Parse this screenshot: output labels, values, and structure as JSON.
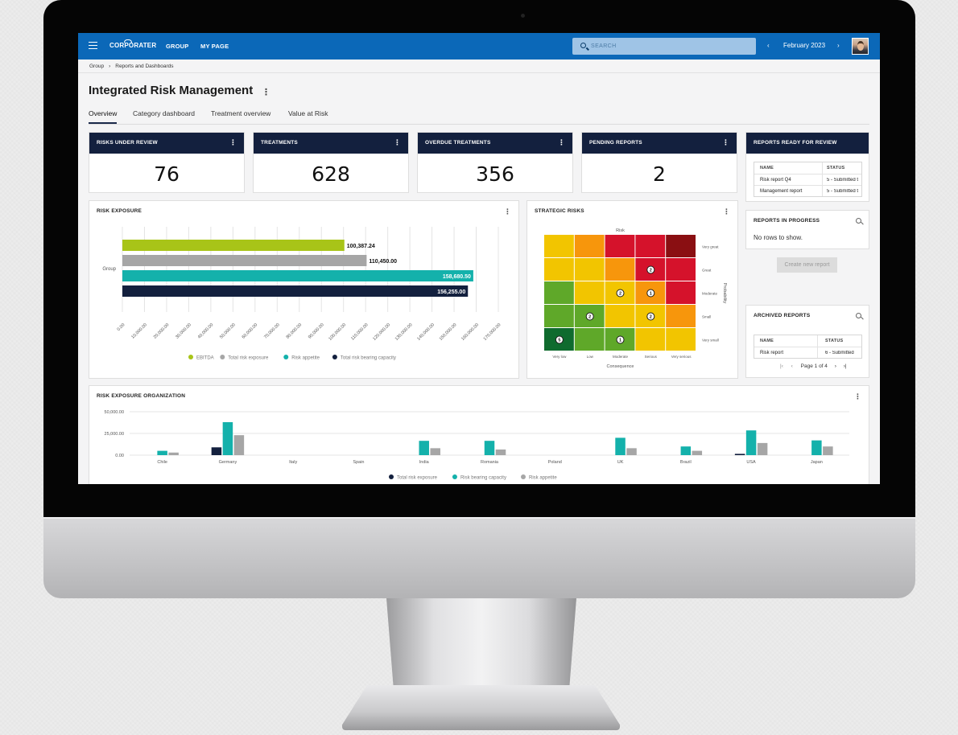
{
  "topbar": {
    "logo": "CORPORATER",
    "nav": [
      "GROUP",
      "MY PAGE"
    ],
    "search_placeholder": "SEARCH",
    "period": "February 2023",
    "prev": "‹",
    "next": "›"
  },
  "breadcrumb": [
    "Group",
    "›",
    "Reports and Dashboards"
  ],
  "page": {
    "title": "Integrated Risk Management",
    "menu": "⋮",
    "tabs": [
      "Overview",
      "Category dashboard",
      "Treatment overview",
      "Value at Risk"
    ]
  },
  "kpis": [
    {
      "label": "RISKS UNDER REVIEW",
      "value": "76"
    },
    {
      "label": "TREATMENTS",
      "value": "628"
    },
    {
      "label": "OVERDUE TREATMENTS",
      "value": "356"
    },
    {
      "label": "PENDING REPORTS",
      "value": "2"
    }
  ],
  "reports_ready": {
    "title": "REPORTS READY FOR REVIEW",
    "columns": [
      "NAME",
      "STATUS"
    ],
    "rows": [
      {
        "name": "Risk report Q4",
        "status": "5 - Submitted t"
      },
      {
        "name": "Management report",
        "status": "5 - Submitted t"
      }
    ]
  },
  "reports_in_progress": {
    "title": "REPORTS IN PROGRESS",
    "empty": "No rows to show.",
    "button": "Create new report"
  },
  "archived_reports": {
    "title": "ARCHIVED REPORTS",
    "columns": [
      "NAME",
      "STATUS"
    ],
    "rows": [
      {
        "name": "Risk report",
        "status": "6 - Submitted"
      }
    ],
    "pager": "Page 1 of 4"
  },
  "colors": {
    "lime": "#a8c418",
    "grey": "#a6a6a6",
    "teal": "#14b1ab",
    "navy": "#13203e",
    "topbar": "#0b68b8"
  },
  "risk_exposure": {
    "title": "RISK EXPOSURE",
    "chart_data": {
      "type": "bar",
      "orientation": "horizontal",
      "categories": [
        "Group"
      ],
      "series": [
        {
          "name": "EBITDA",
          "values": [
            100387.24
          ],
          "label": "100,387.24",
          "color": "#a8c418"
        },
        {
          "name": "Total risk exposure",
          "values": [
            110450.0
          ],
          "label": "110,450.00",
          "color": "#a6a6a6"
        },
        {
          "name": "Risk appetite",
          "values": [
            158680.5
          ],
          "label": "158,680.50",
          "color": "#14b1ab"
        },
        {
          "name": "Total risk bearing capacity",
          "values": [
            156255.0
          ],
          "label": "156,255.00",
          "color": "#13203e"
        }
      ],
      "xticks": [
        "0.00",
        "10,000.00",
        "20,000.00",
        "30,000.00",
        "40,000.00",
        "50,000.00",
        "60,000.00",
        "70,000.00",
        "80,000.00",
        "90,000.00",
        "100,000.00",
        "110,000.00",
        "120,000.00",
        "130,000.00",
        "140,000.00",
        "150,000.00",
        "160,000.00",
        "170,000.00"
      ],
      "xlim": [
        0,
        170000
      ],
      "grid": true,
      "legend": "bottom"
    }
  },
  "strategic_risks": {
    "title": "STRATEGIC RISKS",
    "chart_data": {
      "type": "heatmap",
      "title": "Risk",
      "xlabel": "Consequence",
      "ylabel": "Probability",
      "x_categories": [
        "Very low",
        "Low",
        "Moderate",
        "Serious",
        "Very serious"
      ],
      "y_categories": [
        "Very great",
        "Great",
        "Moderate",
        "Small",
        "Very small"
      ],
      "cell_colors": [
        [
          "#f2c500",
          "#f7960c",
          "#d5122b",
          "#d5122b",
          "#8a0f12"
        ],
        [
          "#f2c500",
          "#f2c500",
          "#f7960c",
          "#d5122b",
          "#d5122b"
        ],
        [
          "#5fa829",
          "#f2c500",
          "#f2c500",
          "#f7960c",
          "#d5122b"
        ],
        [
          "#5fa829",
          "#5fa829",
          "#f2c500",
          "#f2c500",
          "#f7960c"
        ],
        [
          "#0f6b2e",
          "#5fa829",
          "#5fa829",
          "#f2c500",
          "#f2c500"
        ]
      ],
      "counts": [
        {
          "row": 1,
          "col": 3,
          "value": "2"
        },
        {
          "row": 2,
          "col": 2,
          "value": "2"
        },
        {
          "row": 2,
          "col": 3,
          "value": "1"
        },
        {
          "row": 3,
          "col": 1,
          "value": "2"
        },
        {
          "row": 3,
          "col": 3,
          "value": "2"
        },
        {
          "row": 4,
          "col": 0,
          "value": "5"
        },
        {
          "row": 4,
          "col": 2,
          "value": "1"
        }
      ]
    }
  },
  "risk_exposure_org": {
    "title": "RISK EXPOSURE ORGANIZATION",
    "chart_data": {
      "type": "bar",
      "categories": [
        "Chile",
        "Germany",
        "Italy",
        "Spain",
        "India",
        "Romania",
        "Poland",
        "UK",
        "Brazil",
        "USA",
        "Japan"
      ],
      "series": [
        {
          "name": "Total risk exposure",
          "color": "#13203e",
          "values": [
            0,
            9000,
            0,
            0,
            0,
            0,
            0,
            0,
            0,
            1500,
            0
          ]
        },
        {
          "name": "Risk bearing capacity",
          "color": "#14b1ab",
          "values": [
            5000,
            38000,
            0,
            0,
            16500,
            16500,
            0,
            20000,
            10000,
            28500,
            17000
          ]
        },
        {
          "name": "Risk appetite",
          "color": "#a6a6a6",
          "values": [
            3000,
            23000,
            0,
            0,
            8000,
            6500,
            0,
            8000,
            5000,
            14000,
            10000
          ]
        }
      ],
      "yticks": [
        "0.00",
        "25,000.00",
        "50,000.00"
      ],
      "ylim": [
        0,
        50000
      ],
      "grid": true,
      "legend": "bottom"
    }
  }
}
